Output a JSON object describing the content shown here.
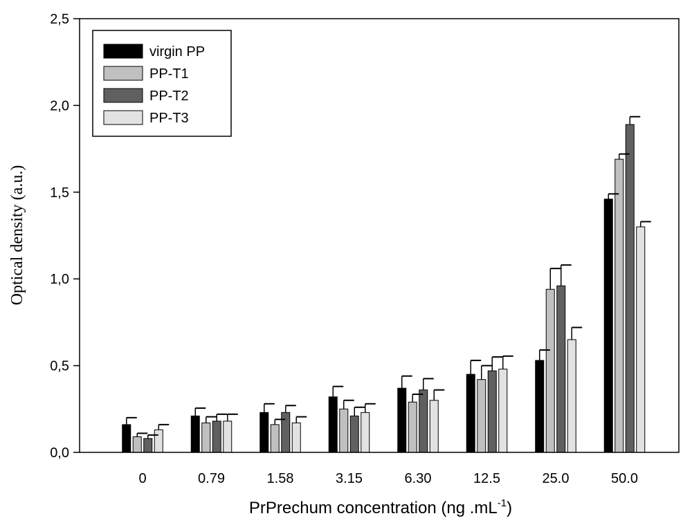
{
  "chart_data": {
    "type": "bar",
    "title": "",
    "xlabel": "PrPrechum concentration (ng .mL",
    "xlabel_superscript": "-1",
    "xlabel_suffix": ")",
    "ylabel": "Optical density (a.u.)",
    "ylim": [
      0,
      2.5
    ],
    "yticks": [
      {
        "value": 0.0,
        "label": "0,0"
      },
      {
        "value": 0.5,
        "label": "0,5"
      },
      {
        "value": 1.0,
        "label": "1,0"
      },
      {
        "value": 1.5,
        "label": "1,5"
      },
      {
        "value": 2.0,
        "label": "2,0"
      },
      {
        "value": 2.5,
        "label": "2,5"
      }
    ],
    "categories": [
      "0",
      "0.79",
      "1.58",
      "3.15",
      "6.30",
      "12.5",
      "25.0",
      "50.0"
    ],
    "legend_position": "top-left",
    "series": [
      {
        "name": "virgin PP",
        "color": "#000000",
        "values": [
          0.16,
          0.21,
          0.23,
          0.32,
          0.37,
          0.45,
          0.53,
          1.46
        ],
        "errors": [
          0.04,
          0.045,
          0.05,
          0.06,
          0.07,
          0.08,
          0.06,
          0.03
        ]
      },
      {
        "name": "PP-T1",
        "color": "#c0c0c0",
        "values": [
          0.09,
          0.17,
          0.16,
          0.25,
          0.29,
          0.42,
          0.94,
          1.69
        ],
        "errors": [
          0.02,
          0.035,
          0.03,
          0.05,
          0.045,
          0.08,
          0.12,
          0.03
        ]
      },
      {
        "name": "PP-T2",
        "color": "#606060",
        "values": [
          0.08,
          0.18,
          0.23,
          0.21,
          0.36,
          0.47,
          0.96,
          1.89
        ],
        "errors": [
          0.02,
          0.04,
          0.04,
          0.05,
          0.065,
          0.08,
          0.12,
          0.045
        ]
      },
      {
        "name": "PP-T3",
        "color": "#e2e2e2",
        "values": [
          0.13,
          0.18,
          0.17,
          0.23,
          0.3,
          0.48,
          0.65,
          1.3
        ],
        "errors": [
          0.03,
          0.04,
          0.035,
          0.05,
          0.06,
          0.075,
          0.07,
          0.03
        ]
      }
    ]
  }
}
